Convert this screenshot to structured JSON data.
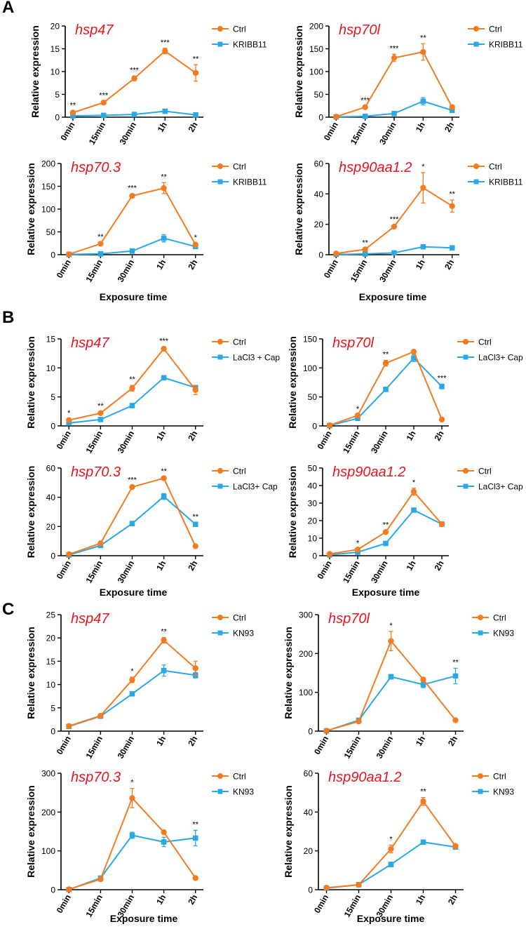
{
  "figure": {
    "x_categories": [
      "0min",
      "15min",
      "30min",
      "1h",
      "2h"
    ],
    "colors": {
      "ctrl": "#f47b20",
      "treatment": "#2aa8e6",
      "gene_title": "#e8141e"
    },
    "panels": [
      {
        "letter": "A",
        "xlabel": "Exposure time",
        "ylabel": "Relative expression"
      },
      {
        "letter": "B",
        "xlabel": "Exposure time",
        "ylabel": "Relative expression"
      },
      {
        "letter": "C",
        "xlabel": "Exposure time",
        "ylabel": "Relative expression"
      }
    ]
  },
  "chart_data": [
    {
      "type": "line",
      "panel": "A",
      "title": "hsp47",
      "categories": [
        "0min",
        "15min",
        "30min",
        "1h",
        "2h"
      ],
      "ylim": [
        0,
        20
      ],
      "yticks": [
        0,
        5,
        10,
        15,
        20
      ],
      "series": [
        {
          "name": "Ctrl",
          "values": [
            1.0,
            3.2,
            8.5,
            14.5,
            9.7
          ],
          "errors": [
            0.3,
            0.3,
            0.5,
            0.6,
            1.8
          ]
        },
        {
          "name": "KRIBB11",
          "values": [
            0.3,
            0.4,
            0.6,
            1.3,
            0.5
          ],
          "errors": [
            0.1,
            0.1,
            0.1,
            0.2,
            0.1
          ]
        }
      ],
      "significance": [
        "**",
        "***",
        "***",
        "***",
        "**"
      ]
    },
    {
      "type": "line",
      "panel": "A",
      "title": "hsp70l",
      "categories": [
        "0min",
        "15min",
        "30min",
        "1h",
        "2h"
      ],
      "ylim": [
        0,
        200
      ],
      "yticks": [
        0,
        50,
        100,
        150,
        200
      ],
      "series": [
        {
          "name": "Ctrl",
          "values": [
            1,
            22,
            130,
            143,
            22
          ],
          "errors": [
            0.5,
            2,
            8,
            18,
            3
          ]
        },
        {
          "name": "KRIBB11",
          "values": [
            0.5,
            2,
            8,
            35,
            15
          ],
          "errors": [
            0.2,
            0.5,
            2,
            8,
            3
          ]
        }
      ],
      "significance": [
        "",
        "***",
        "***",
        "**",
        ""
      ]
    },
    {
      "type": "line",
      "panel": "A",
      "title": "hsp70.3",
      "categories": [
        "0min",
        "15min",
        "30min",
        "1h",
        "2h"
      ],
      "ylim": [
        0,
        200
      ],
      "yticks": [
        0,
        50,
        100,
        150,
        200
      ],
      "series": [
        {
          "name": "Ctrl",
          "values": [
            1,
            24,
            129,
            146,
            22
          ],
          "errors": [
            0.5,
            2,
            4,
            12,
            3
          ]
        },
        {
          "name": "KRIBB11",
          "values": [
            0.5,
            2,
            8,
            36,
            18
          ],
          "errors": [
            0.2,
            0.5,
            2,
            8,
            3
          ]
        }
      ],
      "significance": [
        "",
        "**",
        "***",
        "**",
        "*"
      ]
    },
    {
      "type": "line",
      "panel": "A",
      "title": "hsp90aa1.2",
      "categories": [
        "0min",
        "15min",
        "30min",
        "1h",
        "2h"
      ],
      "ylim": [
        0,
        60
      ],
      "yticks": [
        0,
        20,
        40,
        60
      ],
      "series": [
        {
          "name": "Ctrl",
          "values": [
            0.8,
            3.5,
            18.5,
            44,
            32
          ],
          "errors": [
            0.3,
            0.5,
            1,
            10,
            4
          ]
        },
        {
          "name": "KRIBB11",
          "values": [
            0.2,
            0.5,
            1.2,
            5.2,
            4.5
          ],
          "errors": [
            0.1,
            0.1,
            0.2,
            0.5,
            0.5
          ]
        }
      ],
      "significance": [
        "",
        "**",
        "***",
        "*",
        "**"
      ]
    },
    {
      "type": "line",
      "panel": "B",
      "title": "hsp47",
      "categories": [
        "0min",
        "15min",
        "30min",
        "1h",
        "2h"
      ],
      "ylim": [
        0,
        15
      ],
      "yticks": [
        0,
        5,
        10,
        15
      ],
      "series": [
        {
          "name": "Ctrl",
          "values": [
            1.0,
            2.2,
            6.5,
            13.3,
            6.2
          ],
          "errors": [
            0.2,
            0.2,
            0.5,
            0.3,
            0.8
          ]
        },
        {
          "name": "LaCl3 + Cap",
          "values": [
            0.5,
            1.1,
            3.5,
            8.3,
            6.6
          ],
          "errors": [
            0.1,
            0.1,
            0.2,
            0.2,
            0.3
          ]
        }
      ],
      "significance": [
        "*",
        "**",
        "**",
        "***",
        ""
      ]
    },
    {
      "type": "line",
      "panel": "B",
      "title": "hsp70l",
      "categories": [
        "0min",
        "15min",
        "30min",
        "1h",
        "2h"
      ],
      "ylim": [
        0,
        150
      ],
      "yticks": [
        0,
        50,
        100,
        150
      ],
      "series": [
        {
          "name": "Ctrl",
          "values": [
            1,
            18,
            108,
            128,
            11
          ],
          "errors": [
            0.5,
            1,
            5,
            2,
            1
          ]
        },
        {
          "name": "LaCl3+ Cap",
          "values": [
            0.5,
            13,
            63,
            117,
            68
          ],
          "errors": [
            0.2,
            1,
            2,
            6,
            4
          ]
        }
      ],
      "significance": [
        "",
        "*",
        "**",
        "",
        "***"
      ]
    },
    {
      "type": "line",
      "panel": "B",
      "title": "hsp70.3",
      "categories": [
        "0min",
        "15min",
        "30min",
        "1h",
        "2h"
      ],
      "ylim": [
        0,
        60
      ],
      "yticks": [
        0,
        20,
        40,
        60
      ],
      "series": [
        {
          "name": "Ctrl",
          "values": [
            1,
            8.5,
            47,
            53,
            6.5
          ],
          "errors": [
            0.2,
            0.5,
            0.8,
            0.8,
            0.5
          ]
        },
        {
          "name": "LaCl3+ Cap",
          "values": [
            0.5,
            7,
            22,
            40.5,
            21.5
          ],
          "errors": [
            0.1,
            0.5,
            1.5,
            2,
            1
          ]
        }
      ],
      "significance": [
        "",
        "",
        "***",
        "**",
        "**"
      ]
    },
    {
      "type": "line",
      "panel": "B",
      "title": "hsp90aa1.2",
      "categories": [
        "0min",
        "15min",
        "30min",
        "1h",
        "2h"
      ],
      "ylim": [
        0,
        50
      ],
      "yticks": [
        0,
        10,
        20,
        30,
        40,
        50
      ],
      "series": [
        {
          "name": "Ctrl",
          "values": [
            1,
            3.5,
            13.5,
            36.5,
            18
          ],
          "errors": [
            0.2,
            0.3,
            0.8,
            2,
            0.5
          ]
        },
        {
          "name": "LaCl3+ Cap",
          "values": [
            0.5,
            2,
            7,
            26,
            18
          ],
          "errors": [
            0.1,
            0.2,
            0.5,
            0.8,
            0.5
          ]
        }
      ],
      "significance": [
        "",
        "*",
        "**",
        "*",
        ""
      ]
    },
    {
      "type": "line",
      "panel": "C",
      "title": "hsp47",
      "categories": [
        "0min",
        "15min",
        "30min",
        "1h",
        "2h"
      ],
      "ylim": [
        0,
        25
      ],
      "yticks": [
        0,
        5,
        10,
        15,
        20,
        25
      ],
      "series": [
        {
          "name": "Ctrl",
          "values": [
            1.1,
            3.3,
            11,
            19.5,
            13.5
          ],
          "errors": [
            0.2,
            0.2,
            0.6,
            0.6,
            1.5
          ]
        },
        {
          "name": "KN93",
          "values": [
            1.0,
            3.2,
            8,
            13,
            12
          ],
          "errors": [
            0.1,
            0.2,
            0.3,
            1.2,
            0.6
          ]
        }
      ],
      "significance": [
        "",
        "",
        "*",
        "**",
        ""
      ]
    },
    {
      "type": "line",
      "panel": "C",
      "title": "hsp70l",
      "categories": [
        "0min",
        "15min",
        "30min",
        "1h",
        "2h"
      ],
      "ylim": [
        0,
        300
      ],
      "yticks": [
        0,
        100,
        200,
        300
      ],
      "series": [
        {
          "name": "Ctrl",
          "values": [
            1,
            25,
            232,
            133,
            28
          ],
          "errors": [
            0.5,
            2,
            25,
            5,
            2
          ]
        },
        {
          "name": "KN93",
          "values": [
            0.5,
            28,
            140,
            120,
            142
          ],
          "errors": [
            0.2,
            2,
            6,
            8,
            20
          ]
        }
      ],
      "significance": [
        "",
        "",
        "*",
        "",
        "**"
      ]
    },
    {
      "type": "line",
      "panel": "C",
      "title": "hsp70.3",
      "categories": [
        "0min",
        "15min",
        "30min",
        "1h",
        "2h"
      ],
      "ylim": [
        0,
        300
      ],
      "yticks": [
        0,
        100,
        200,
        300
      ],
      "series": [
        {
          "name": "Ctrl",
          "values": [
            1,
            27,
            236,
            148,
            30
          ],
          "errors": [
            0.5,
            2,
            25,
            4,
            2
          ]
        },
        {
          "name": "KN93",
          "values": [
            0.5,
            30,
            140,
            123,
            133
          ],
          "errors": [
            0.2,
            3,
            8,
            12,
            20
          ]
        }
      ],
      "significance": [
        "",
        "",
        "*",
        "",
        "**"
      ]
    },
    {
      "type": "line",
      "panel": "C",
      "title": "hsp90aa1.2",
      "categories": [
        "0min",
        "15min",
        "30min",
        "1h",
        "2h"
      ],
      "ylim": [
        0,
        60
      ],
      "yticks": [
        0,
        20,
        40,
        60
      ],
      "series": [
        {
          "name": "Ctrl",
          "values": [
            1,
            2.5,
            21,
            45.5,
            22.5
          ],
          "errors": [
            0.2,
            0.2,
            2,
            2,
            0.6
          ]
        },
        {
          "name": "KN93",
          "values": [
            0.8,
            2.6,
            13,
            24.5,
            22
          ],
          "errors": [
            0.1,
            0.2,
            1.2,
            1,
            0.8
          ]
        }
      ],
      "significance": [
        "",
        "",
        "*",
        "**",
        ""
      ]
    }
  ]
}
